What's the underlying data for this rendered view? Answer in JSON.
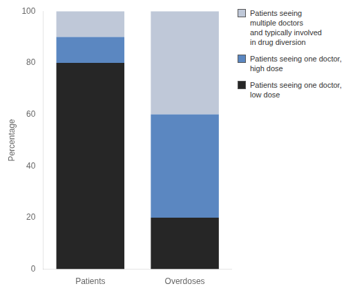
{
  "chart_data": {
    "type": "bar",
    "stacked": true,
    "categories": [
      "Patients",
      "Overdoses"
    ],
    "series": [
      {
        "name": "Patients seeing one doctor,\nlow dose",
        "color": "#262626",
        "values": [
          80,
          20
        ]
      },
      {
        "name": "Patients seeing one doctor,\nhigh dose",
        "color": "#5b87c1",
        "values": [
          10,
          40
        ]
      },
      {
        "name": "Patients seeing\nmultiple doctors\nand typically involved\nin drug diversion",
        "color": "#bfc8d8",
        "values": [
          10,
          40
        ]
      }
    ],
    "ylabel": "Percentage",
    "ylim": [
      0,
      100
    ],
    "yticks": [
      0,
      20,
      40,
      60,
      80,
      100
    ],
    "grid": false,
    "legend": "upper right"
  }
}
